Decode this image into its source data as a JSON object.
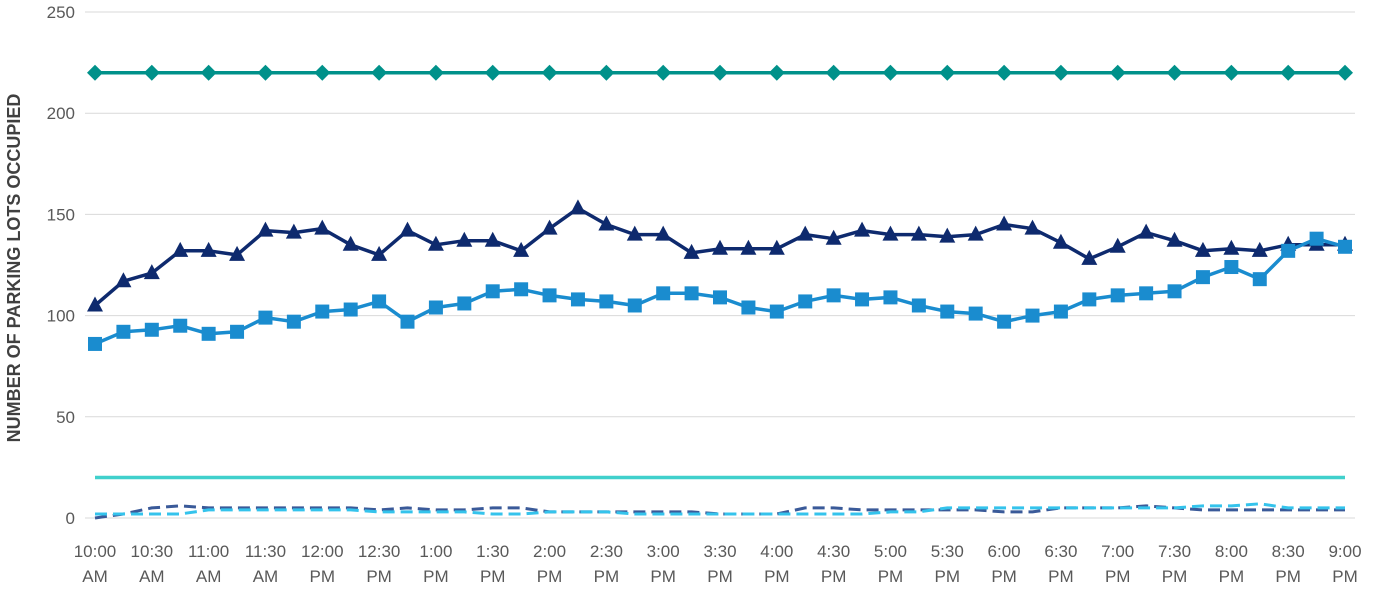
{
  "chart_data": {
    "type": "line",
    "ylabel": "NUMBER OF PARKING LOTS OCCUPIED",
    "ylim": [
      0,
      250
    ],
    "yticks": [
      0,
      50,
      100,
      150,
      200,
      250
    ],
    "grid": true,
    "x_tick_labels": [
      [
        "10:00",
        "AM"
      ],
      [
        "10:30",
        "AM"
      ],
      [
        "11:00",
        "AM"
      ],
      [
        "11:30",
        "AM"
      ],
      [
        "12:00",
        "PM"
      ],
      [
        "12:30",
        "PM"
      ],
      [
        "1:00",
        "PM"
      ],
      [
        "1:30",
        "PM"
      ],
      [
        "2:00",
        "PM"
      ],
      [
        "2:30",
        "PM"
      ],
      [
        "3:00",
        "PM"
      ],
      [
        "3:30",
        "PM"
      ],
      [
        "4:00",
        "PM"
      ],
      [
        "4:30",
        "PM"
      ],
      [
        "5:00",
        "PM"
      ],
      [
        "5:30",
        "PM"
      ],
      [
        "6:00",
        "PM"
      ],
      [
        "6:30",
        "PM"
      ],
      [
        "7:00",
        "PM"
      ],
      [
        "7:30",
        "PM"
      ],
      [
        "8:00",
        "PM"
      ],
      [
        "8:30",
        "PM"
      ],
      [
        "9:00",
        "PM"
      ]
    ],
    "series": [
      {
        "color": "#00918a",
        "marker": "diamond",
        "line": "solid",
        "values": [
          220,
          220,
          220,
          220,
          220,
          220,
          220,
          220,
          220,
          220,
          220,
          220,
          220,
          220,
          220,
          220,
          220,
          220,
          220,
          220,
          220,
          220,
          220,
          220,
          220,
          220,
          220,
          220,
          220,
          220,
          220,
          220,
          220,
          220,
          220,
          220,
          220,
          220,
          220,
          220,
          220,
          220,
          220,
          220,
          220
        ]
      },
      {
        "color": "#0e2a6e",
        "marker": "triangle",
        "line": "solid",
        "values": [
          105,
          117,
          121,
          132,
          132,
          130,
          142,
          141,
          143,
          135,
          130,
          142,
          135,
          137,
          137,
          132,
          143,
          153,
          145,
          140,
          140,
          131,
          133,
          133,
          133,
          140,
          138,
          142,
          140,
          140,
          139,
          140,
          145,
          143,
          136,
          128,
          134,
          141,
          137,
          132,
          133,
          132,
          135,
          135,
          135
        ]
      },
      {
        "color": "#1a8ccf",
        "marker": "square",
        "line": "solid",
        "values": [
          86,
          92,
          93,
          95,
          91,
          92,
          99,
          97,
          102,
          103,
          107,
          97,
          104,
          106,
          112,
          113,
          110,
          108,
          107,
          105,
          111,
          111,
          109,
          104,
          102,
          107,
          110,
          108,
          109,
          105,
          102,
          101,
          97,
          100,
          102,
          108,
          110,
          111,
          112,
          119,
          124,
          118,
          132,
          138,
          134
        ]
      },
      {
        "color": "#40d0cc",
        "marker": "none",
        "line": "solid",
        "values": [
          20,
          20,
          20,
          20,
          20,
          20,
          20,
          20,
          20,
          20,
          20,
          20,
          20,
          20,
          20,
          20,
          20,
          20,
          20,
          20,
          20,
          20,
          20,
          20,
          20,
          20,
          20,
          20,
          20,
          20,
          20,
          20,
          20,
          20,
          20,
          20,
          20,
          20,
          20,
          20,
          20,
          20,
          20,
          20,
          20
        ]
      },
      {
        "color": "#3a5a99",
        "marker": "none",
        "line": "dashed",
        "values": [
          0,
          2,
          5,
          6,
          5,
          5,
          5,
          5,
          5,
          5,
          4,
          5,
          4,
          4,
          5,
          5,
          3,
          3,
          3,
          3,
          3,
          3,
          2,
          2,
          2,
          5,
          5,
          4,
          4,
          4,
          4,
          4,
          3,
          3,
          5,
          5,
          5,
          6,
          5,
          4,
          4,
          4,
          4,
          4,
          4
        ]
      },
      {
        "color": "#34c3ec",
        "marker": "none",
        "line": "dashed",
        "values": [
          2,
          2,
          2,
          2,
          4,
          4,
          4,
          4,
          4,
          4,
          3,
          3,
          3,
          3,
          2,
          2,
          3,
          3,
          3,
          2,
          2,
          2,
          2,
          2,
          2,
          2,
          2,
          2,
          3,
          3,
          5,
          5,
          5,
          5,
          5,
          5,
          5,
          5,
          5,
          6,
          6,
          7,
          5,
          5,
          5
        ]
      }
    ]
  }
}
